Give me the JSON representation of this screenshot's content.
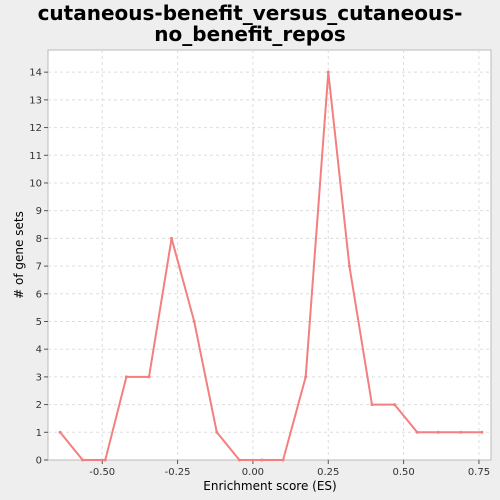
{
  "chart_data": {
    "type": "line",
    "title_lines": [
      "cutaneous-benefit_versus_cutaneous-",
      "no_benefit_repos"
    ],
    "xlabel": "Enrichment score (ES)",
    "ylabel": "# of gene sets",
    "xlim": [
      -0.68,
      0.79
    ],
    "ylim": [
      0,
      14.8
    ],
    "xticks": [
      -0.5,
      -0.25,
      0.0,
      0.25,
      0.5,
      0.75
    ],
    "xtick_labels": [
      "-0.50",
      "-0.25",
      "0.00",
      "0.25",
      "0.50",
      "0.75"
    ],
    "yticks": [
      0,
      1,
      2,
      3,
      4,
      5,
      6,
      7,
      8,
      9,
      10,
      11,
      12,
      13,
      14
    ],
    "ytick_labels": [
      "0",
      "1",
      "2",
      "3",
      "4",
      "5",
      "6",
      "7",
      "8",
      "9",
      "10",
      "11",
      "12",
      "13",
      "14"
    ],
    "grid": true,
    "legend": "none",
    "series": [
      {
        "color": "#f47f7f",
        "x": [
          -0.64,
          -0.565,
          -0.49,
          -0.42,
          -0.345,
          -0.27,
          -0.195,
          -0.12,
          -0.045,
          0.03,
          0.1,
          0.175,
          0.25,
          0.32,
          0.395,
          0.47,
          0.545,
          0.615,
          0.69,
          0.76
        ],
        "y": [
          1,
          0,
          0,
          3,
          3,
          8,
          5,
          1,
          0,
          0,
          0,
          3,
          14,
          7,
          2,
          2,
          1,
          1,
          1,
          1
        ]
      }
    ]
  }
}
